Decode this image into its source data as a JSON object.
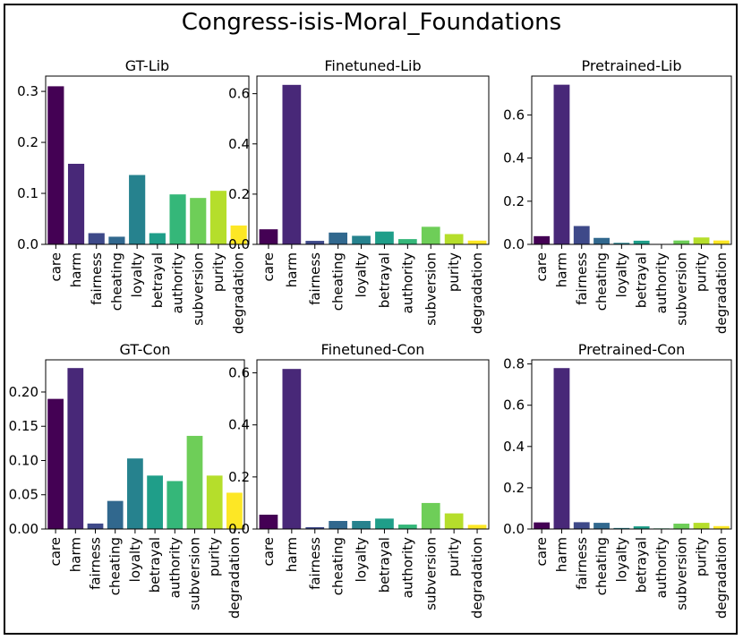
{
  "figure": {
    "title": "Congress-isis-Moral_Foundations"
  },
  "chart_data": [
    {
      "type": "bar",
      "title": "GT-Lib",
      "categories": [
        "care",
        "harm",
        "fairness",
        "cheating",
        "loyalty",
        "betrayal",
        "authority",
        "subversion",
        "purity",
        "degradation"
      ],
      "values": [
        0.31,
        0.158,
        0.022,
        0.015,
        0.136,
        0.022,
        0.098,
        0.091,
        0.105,
        0.037
      ],
      "ylim": [
        0,
        0.33
      ],
      "yticks": [
        0.0,
        0.1,
        0.2,
        0.3
      ],
      "ytick_labels": [
        "0.0",
        "0.1",
        "0.2",
        "0.3"
      ]
    },
    {
      "type": "bar",
      "title": "Finetuned-Lib",
      "categories": [
        "care",
        "harm",
        "fairness",
        "cheating",
        "loyalty",
        "betrayal",
        "authority",
        "subversion",
        "purity",
        "degradation"
      ],
      "values": [
        0.06,
        0.635,
        0.014,
        0.047,
        0.034,
        0.051,
        0.021,
        0.07,
        0.041,
        0.015
      ],
      "ylim": [
        0,
        0.67
      ],
      "yticks": [
        0.0,
        0.2,
        0.4,
        0.6
      ],
      "ytick_labels": [
        "0.0",
        "0.2",
        "0.4",
        "0.6"
      ]
    },
    {
      "type": "bar",
      "title": "Pretrained-Lib",
      "categories": [
        "care",
        "harm",
        "fairness",
        "cheating",
        "loyalty",
        "betrayal",
        "authority",
        "subversion",
        "purity",
        "degradation"
      ],
      "values": [
        0.038,
        0.74,
        0.085,
        0.03,
        0.007,
        0.017,
        0.002,
        0.018,
        0.032,
        0.018
      ],
      "ylim": [
        0,
        0.78
      ],
      "yticks": [
        0.0,
        0.2,
        0.4,
        0.6
      ],
      "ytick_labels": [
        "0.0",
        "0.2",
        "0.4",
        "0.6"
      ]
    },
    {
      "type": "bar",
      "title": "GT-Con",
      "categories": [
        "care",
        "harm",
        "fairness",
        "cheating",
        "loyalty",
        "betrayal",
        "authority",
        "subversion",
        "purity",
        "degradation"
      ],
      "values": [
        0.19,
        0.235,
        0.008,
        0.041,
        0.103,
        0.078,
        0.07,
        0.136,
        0.078,
        0.053
      ],
      "ylim": [
        0,
        0.247
      ],
      "yticks": [
        0.0,
        0.05,
        0.1,
        0.15,
        0.2
      ],
      "ytick_labels": [
        "0.00",
        "0.05",
        "0.10",
        "0.15",
        "0.20"
      ]
    },
    {
      "type": "bar",
      "title": "Finetuned-Con",
      "categories": [
        "care",
        "harm",
        "fairness",
        "cheating",
        "loyalty",
        "betrayal",
        "authority",
        "subversion",
        "purity",
        "degradation"
      ],
      "values": [
        0.055,
        0.615,
        0.007,
        0.031,
        0.031,
        0.04,
        0.017,
        0.1,
        0.06,
        0.016
      ],
      "ylim": [
        0,
        0.65
      ],
      "yticks": [
        0.0,
        0.2,
        0.4,
        0.6
      ],
      "ytick_labels": [
        "0.0",
        "0.2",
        "0.4",
        "0.6"
      ]
    },
    {
      "type": "bar",
      "title": "Pretrained-Con",
      "categories": [
        "care",
        "harm",
        "fairness",
        "cheating",
        "loyalty",
        "betrayal",
        "authority",
        "subversion",
        "purity",
        "degradation"
      ],
      "values": [
        0.032,
        0.78,
        0.033,
        0.03,
        0.005,
        0.013,
        0.003,
        0.026,
        0.03,
        0.014
      ],
      "ylim": [
        0,
        0.82
      ],
      "yticks": [
        0.0,
        0.2,
        0.4,
        0.6,
        0.8
      ],
      "ytick_labels": [
        "0.0",
        "0.2",
        "0.4",
        "0.6",
        "0.8"
      ]
    }
  ],
  "colors": [
    "#440154",
    "#482878",
    "#3e4989",
    "#31688e",
    "#26828e",
    "#1f9e89",
    "#35b779",
    "#6ece58",
    "#b5de2b",
    "#fde725"
  ]
}
